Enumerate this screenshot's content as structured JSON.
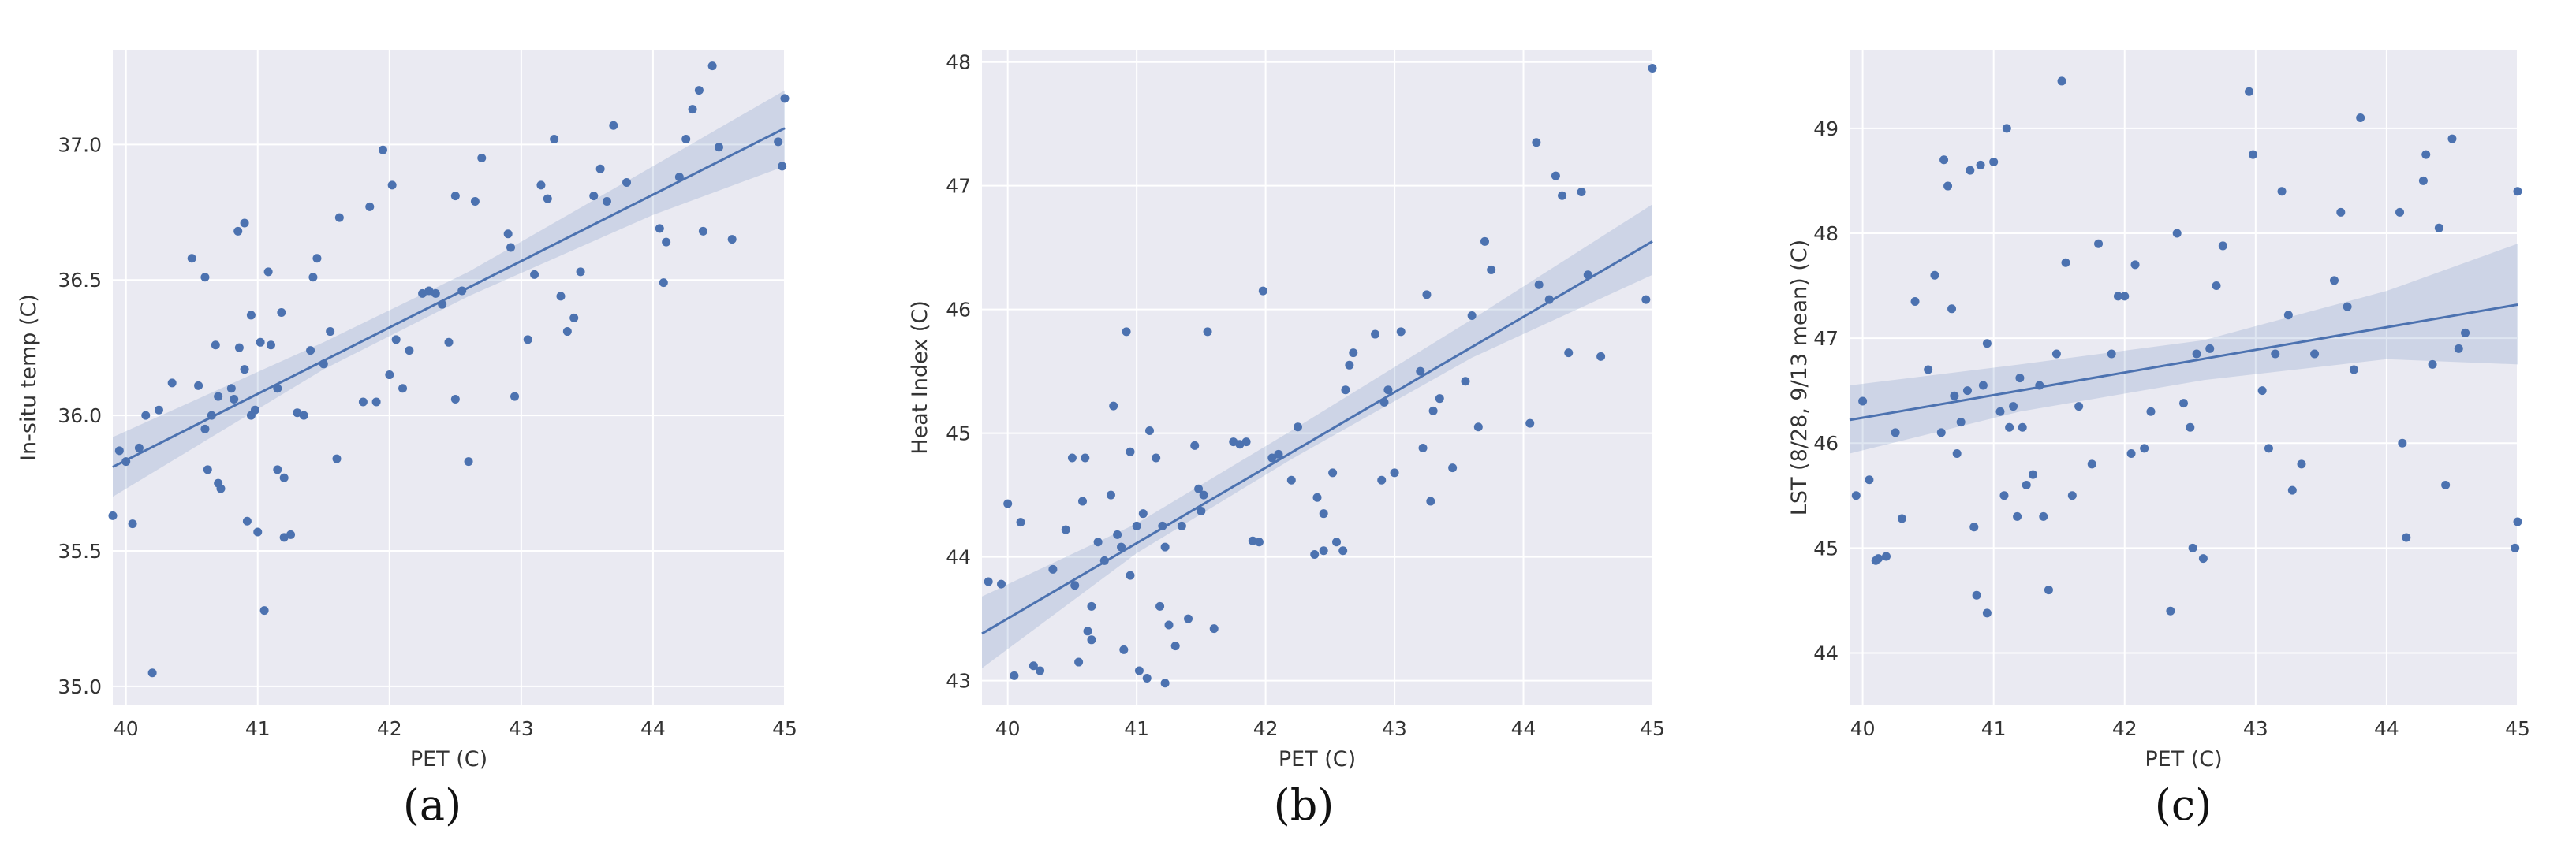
{
  "chart_data": [
    {
      "type": "scatter",
      "panel_label": "(a)",
      "xlabel": "PET (C)",
      "ylabel": "In-situ temp (C)",
      "xlim": [
        39.9,
        45.0
      ],
      "ylim": [
        34.93,
        37.35
      ],
      "xticks": [
        "40",
        "41",
        "42",
        "43",
        "44",
        "45"
      ],
      "yticks": [
        "35.0",
        "35.5",
        "36.0",
        "36.5",
        "37.0"
      ],
      "grid": true,
      "background_color": "#EAEAF2",
      "point_color": "#4C72B0",
      "regression": {
        "x": [
          39.9,
          45.0
        ],
        "y": [
          35.81,
          37.06
        ]
      },
      "confidence_band": {
        "x": [
          39.9,
          41.5,
          42.6,
          44.0,
          45.0
        ],
        "lower": [
          35.7,
          36.17,
          36.44,
          36.74,
          36.92
        ],
        "upper": [
          35.92,
          36.27,
          36.53,
          36.92,
          37.2
        ]
      },
      "points": [
        [
          39.9,
          35.63
        ],
        [
          39.95,
          35.87
        ],
        [
          40.0,
          35.83
        ],
        [
          40.05,
          35.6
        ],
        [
          40.1,
          35.88
        ],
        [
          40.15,
          36.0
        ],
        [
          40.2,
          35.05
        ],
        [
          40.25,
          36.02
        ],
        [
          40.35,
          36.12
        ],
        [
          40.5,
          36.58
        ],
        [
          40.55,
          36.11
        ],
        [
          40.6,
          35.95
        ],
        [
          40.6,
          36.51
        ],
        [
          40.62,
          35.8
        ],
        [
          40.65,
          36.0
        ],
        [
          40.68,
          36.26
        ],
        [
          40.7,
          35.75
        ],
        [
          40.7,
          36.07
        ],
        [
          40.72,
          35.73
        ],
        [
          40.8,
          36.1
        ],
        [
          40.82,
          36.06
        ],
        [
          40.85,
          36.68
        ],
        [
          40.86,
          36.25
        ],
        [
          40.9,
          36.17
        ],
        [
          40.9,
          36.71
        ],
        [
          40.92,
          35.61
        ],
        [
          40.95,
          36.37
        ],
        [
          40.95,
          36.0
        ],
        [
          40.98,
          36.02
        ],
        [
          41.0,
          35.57
        ],
        [
          41.02,
          36.27
        ],
        [
          41.05,
          35.28
        ],
        [
          41.08,
          36.53
        ],
        [
          41.1,
          36.26
        ],
        [
          41.15,
          36.1
        ],
        [
          41.15,
          35.8
        ],
        [
          41.18,
          36.38
        ],
        [
          41.2,
          35.55
        ],
        [
          41.2,
          35.77
        ],
        [
          41.25,
          35.56
        ],
        [
          41.3,
          36.01
        ],
        [
          41.35,
          36.0
        ],
        [
          41.4,
          36.24
        ],
        [
          41.42,
          36.51
        ],
        [
          41.45,
          36.58
        ],
        [
          41.5,
          36.19
        ],
        [
          41.55,
          36.31
        ],
        [
          41.6,
          35.84
        ],
        [
          41.62,
          36.73
        ],
        [
          41.8,
          36.05
        ],
        [
          41.85,
          36.77
        ],
        [
          41.9,
          36.05
        ],
        [
          41.95,
          36.98
        ],
        [
          42.0,
          36.15
        ],
        [
          42.02,
          36.85
        ],
        [
          42.05,
          36.28
        ],
        [
          42.1,
          36.1
        ],
        [
          42.15,
          36.24
        ],
        [
          42.25,
          36.45
        ],
        [
          42.3,
          36.46
        ],
        [
          42.35,
          36.45
        ],
        [
          42.4,
          36.41
        ],
        [
          42.45,
          36.27
        ],
        [
          42.5,
          36.81
        ],
        [
          42.5,
          36.06
        ],
        [
          42.55,
          36.46
        ],
        [
          42.6,
          35.83
        ],
        [
          42.65,
          36.79
        ],
        [
          42.7,
          36.95
        ],
        [
          42.9,
          36.67
        ],
        [
          42.92,
          36.62
        ],
        [
          42.95,
          36.07
        ],
        [
          43.05,
          36.28
        ],
        [
          43.1,
          36.52
        ],
        [
          43.15,
          36.85
        ],
        [
          43.2,
          36.8
        ],
        [
          43.25,
          37.02
        ],
        [
          43.3,
          36.44
        ],
        [
          43.35,
          36.31
        ],
        [
          43.4,
          36.36
        ],
        [
          43.45,
          36.53
        ],
        [
          43.55,
          36.81
        ],
        [
          43.6,
          36.91
        ],
        [
          43.65,
          36.79
        ],
        [
          43.7,
          37.07
        ],
        [
          43.8,
          36.86
        ],
        [
          44.05,
          36.69
        ],
        [
          44.08,
          36.49
        ],
        [
          44.1,
          36.64
        ],
        [
          44.2,
          36.88
        ],
        [
          44.25,
          37.02
        ],
        [
          44.3,
          37.13
        ],
        [
          44.35,
          37.2
        ],
        [
          44.38,
          36.68
        ],
        [
          44.45,
          37.29
        ],
        [
          44.5,
          36.99
        ],
        [
          44.6,
          36.65
        ],
        [
          44.95,
          37.01
        ],
        [
          44.98,
          36.92
        ],
        [
          45.0,
          37.17
        ]
      ]
    },
    {
      "type": "scatter",
      "panel_label": "(b)",
      "xlabel": "PET (C)",
      "ylabel": "Heat Index (C)",
      "xlim": [
        39.8,
        45.0
      ],
      "ylim": [
        42.8,
        48.1
      ],
      "xticks": [
        "40",
        "41",
        "42",
        "43",
        "44",
        "45"
      ],
      "yticks": [
        "43",
        "44",
        "45",
        "46",
        "47",
        "48"
      ],
      "grid": true,
      "background_color": "#EAEAF2",
      "point_color": "#4C72B0",
      "regression": {
        "x": [
          39.8,
          45.0
        ],
        "y": [
          43.38,
          46.55
        ]
      },
      "confidence_band": {
        "x": [
          39.8,
          41.0,
          42.2,
          43.6,
          45.0
        ],
        "lower": [
          43.1,
          44.03,
          44.79,
          45.61,
          46.28
        ],
        "upper": [
          43.68,
          44.27,
          45.02,
          45.92,
          46.85
        ]
      },
      "points": [
        [
          39.85,
          43.8
        ],
        [
          39.95,
          43.78
        ],
        [
          40.0,
          44.43
        ],
        [
          40.05,
          43.04
        ],
        [
          40.1,
          44.28
        ],
        [
          40.2,
          43.12
        ],
        [
          40.25,
          43.08
        ],
        [
          40.35,
          43.9
        ],
        [
          40.45,
          44.22
        ],
        [
          40.5,
          44.8
        ],
        [
          40.52,
          43.77
        ],
        [
          40.55,
          43.15
        ],
        [
          40.58,
          44.45
        ],
        [
          40.6,
          44.8
        ],
        [
          40.62,
          43.4
        ],
        [
          40.65,
          43.6
        ],
        [
          40.65,
          43.33
        ],
        [
          40.7,
          44.12
        ],
        [
          40.75,
          43.97
        ],
        [
          40.8,
          44.5
        ],
        [
          40.82,
          45.22
        ],
        [
          40.85,
          44.18
        ],
        [
          40.88,
          44.08
        ],
        [
          40.9,
          43.25
        ],
        [
          40.92,
          45.82
        ],
        [
          40.95,
          44.85
        ],
        [
          40.95,
          43.85
        ],
        [
          41.0,
          44.25
        ],
        [
          41.02,
          43.08
        ],
        [
          41.05,
          44.35
        ],
        [
          41.08,
          43.02
        ],
        [
          41.1,
          45.02
        ],
        [
          41.15,
          44.8
        ],
        [
          41.18,
          43.6
        ],
        [
          41.2,
          44.25
        ],
        [
          41.22,
          44.08
        ],
        [
          41.22,
          42.98
        ],
        [
          41.25,
          43.45
        ],
        [
          41.3,
          43.28
        ],
        [
          41.35,
          44.25
        ],
        [
          41.4,
          43.5
        ],
        [
          41.45,
          44.9
        ],
        [
          41.48,
          44.55
        ],
        [
          41.5,
          44.37
        ],
        [
          41.52,
          44.5
        ],
        [
          41.55,
          45.82
        ],
        [
          41.6,
          43.42
        ],
        [
          41.75,
          44.93
        ],
        [
          41.8,
          44.91
        ],
        [
          41.85,
          44.93
        ],
        [
          41.9,
          44.13
        ],
        [
          41.95,
          44.12
        ],
        [
          41.98,
          46.15
        ],
        [
          42.05,
          44.8
        ],
        [
          42.1,
          44.83
        ],
        [
          42.2,
          44.62
        ],
        [
          42.25,
          45.05
        ],
        [
          42.38,
          44.02
        ],
        [
          42.4,
          44.48
        ],
        [
          42.45,
          44.05
        ],
        [
          42.45,
          44.35
        ],
        [
          42.52,
          44.68
        ],
        [
          42.55,
          44.12
        ],
        [
          42.6,
          44.05
        ],
        [
          42.62,
          45.35
        ],
        [
          42.65,
          45.55
        ],
        [
          42.68,
          45.65
        ],
        [
          42.85,
          45.8
        ],
        [
          42.9,
          44.62
        ],
        [
          42.92,
          45.25
        ],
        [
          42.95,
          45.35
        ],
        [
          43.0,
          44.68
        ],
        [
          43.05,
          45.82
        ],
        [
          43.2,
          45.5
        ],
        [
          43.22,
          44.88
        ],
        [
          43.25,
          46.12
        ],
        [
          43.28,
          44.45
        ],
        [
          43.3,
          45.18
        ],
        [
          43.35,
          45.28
        ],
        [
          43.45,
          44.72
        ],
        [
          43.55,
          45.42
        ],
        [
          43.6,
          45.95
        ],
        [
          43.65,
          45.05
        ],
        [
          43.7,
          46.55
        ],
        [
          43.75,
          46.32
        ],
        [
          44.05,
          45.08
        ],
        [
          44.1,
          47.35
        ],
        [
          44.12,
          46.2
        ],
        [
          44.2,
          46.08
        ],
        [
          44.25,
          47.08
        ],
        [
          44.3,
          46.92
        ],
        [
          44.35,
          45.65
        ],
        [
          44.45,
          46.95
        ],
        [
          44.5,
          46.28
        ],
        [
          44.6,
          45.62
        ],
        [
          44.95,
          46.08
        ],
        [
          45.0,
          47.95
        ]
      ]
    },
    {
      "type": "scatter",
      "panel_label": "(c)",
      "xlabel": "PET (C)",
      "ylabel": "LST (8/28, 9/13 mean) (C)",
      "xlim": [
        39.9,
        45.0
      ],
      "ylim": [
        43.5,
        49.75
      ],
      "xticks": [
        "40",
        "41",
        "42",
        "43",
        "44",
        "45"
      ],
      "yticks": [
        "44",
        "45",
        "46",
        "47",
        "48",
        "49"
      ],
      "grid": true,
      "background_color": "#EAEAF2",
      "point_color": "#4C72B0",
      "regression": {
        "x": [
          39.9,
          45.0
        ],
        "y": [
          46.22,
          47.32
        ]
      },
      "confidence_band": {
        "x": [
          39.9,
          41.2,
          42.6,
          44.0,
          45.0
        ],
        "lower": [
          45.9,
          46.3,
          46.6,
          46.8,
          46.75
        ],
        "upper": [
          46.55,
          46.75,
          46.98,
          47.45,
          47.9
        ]
      },
      "points": [
        [
          39.95,
          45.5
        ],
        [
          40.0,
          46.4
        ],
        [
          40.05,
          45.65
        ],
        [
          40.1,
          44.88
        ],
        [
          40.12,
          44.9
        ],
        [
          40.18,
          44.92
        ],
        [
          40.25,
          46.1
        ],
        [
          40.3,
          45.28
        ],
        [
          40.4,
          47.35
        ],
        [
          40.5,
          46.7
        ],
        [
          40.55,
          47.6
        ],
        [
          40.6,
          46.1
        ],
        [
          40.62,
          48.7
        ],
        [
          40.65,
          48.45
        ],
        [
          40.68,
          47.28
        ],
        [
          40.7,
          46.45
        ],
        [
          40.72,
          45.9
        ],
        [
          40.75,
          46.2
        ],
        [
          40.8,
          46.5
        ],
        [
          40.82,
          48.6
        ],
        [
          40.85,
          45.2
        ],
        [
          40.87,
          44.55
        ],
        [
          40.9,
          48.65
        ],
        [
          40.92,
          46.55
        ],
        [
          40.95,
          46.95
        ],
        [
          40.95,
          44.38
        ],
        [
          41.0,
          48.68
        ],
        [
          41.05,
          46.3
        ],
        [
          41.08,
          45.5
        ],
        [
          41.1,
          49.0
        ],
        [
          41.12,
          46.15
        ],
        [
          41.15,
          46.35
        ],
        [
          41.18,
          45.3
        ],
        [
          41.2,
          46.62
        ],
        [
          41.22,
          46.15
        ],
        [
          41.25,
          45.6
        ],
        [
          41.3,
          45.7
        ],
        [
          41.35,
          46.55
        ],
        [
          41.38,
          45.3
        ],
        [
          41.42,
          44.6
        ],
        [
          41.48,
          46.85
        ],
        [
          41.52,
          49.45
        ],
        [
          41.55,
          47.72
        ],
        [
          41.6,
          45.5
        ],
        [
          41.65,
          46.35
        ],
        [
          41.75,
          45.8
        ],
        [
          41.8,
          47.9
        ],
        [
          41.9,
          46.85
        ],
        [
          41.95,
          47.4
        ],
        [
          42.0,
          47.4
        ],
        [
          42.05,
          45.9
        ],
        [
          42.08,
          47.7
        ],
        [
          42.15,
          45.95
        ],
        [
          42.2,
          46.3
        ],
        [
          42.35,
          44.4
        ],
        [
          42.4,
          48.0
        ],
        [
          42.45,
          46.38
        ],
        [
          42.5,
          46.15
        ],
        [
          42.52,
          45.0
        ],
        [
          42.55,
          46.85
        ],
        [
          42.6,
          44.9
        ],
        [
          42.65,
          46.9
        ],
        [
          42.7,
          47.5
        ],
        [
          42.75,
          47.88
        ],
        [
          42.95,
          49.35
        ],
        [
          42.98,
          48.75
        ],
        [
          43.05,
          46.5
        ],
        [
          43.1,
          45.95
        ],
        [
          43.15,
          46.85
        ],
        [
          43.2,
          48.4
        ],
        [
          43.25,
          47.22
        ],
        [
          43.28,
          45.55
        ],
        [
          43.35,
          45.8
        ],
        [
          43.45,
          46.85
        ],
        [
          43.6,
          47.55
        ],
        [
          43.65,
          48.2
        ],
        [
          43.7,
          47.3
        ],
        [
          43.75,
          46.7
        ],
        [
          43.8,
          49.1
        ],
        [
          44.1,
          48.2
        ],
        [
          44.12,
          46.0
        ],
        [
          44.15,
          45.1
        ],
        [
          44.28,
          48.5
        ],
        [
          44.3,
          48.75
        ],
        [
          44.35,
          46.75
        ],
        [
          44.4,
          48.05
        ],
        [
          44.45,
          45.6
        ],
        [
          44.5,
          48.9
        ],
        [
          44.55,
          46.9
        ],
        [
          44.6,
          47.05
        ],
        [
          44.98,
          45.0
        ],
        [
          45.0,
          45.25
        ],
        [
          45.0,
          48.4
        ]
      ]
    }
  ]
}
